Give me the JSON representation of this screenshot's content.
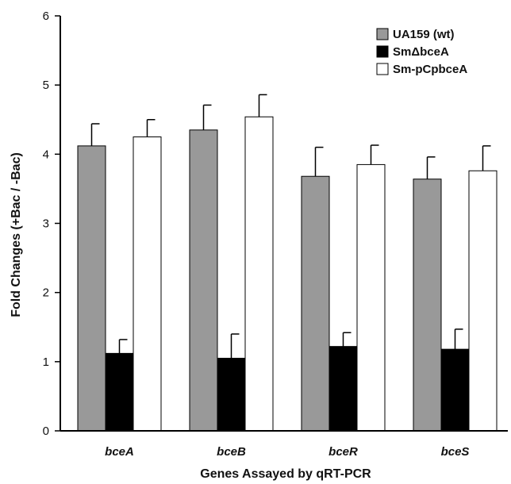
{
  "chart_data": {
    "type": "bar",
    "title": "",
    "xlabel": "Genes Assayed by qRT-PCR",
    "ylabel": "Fold Changes (+Bac / -Bac)",
    "ylim": [
      0,
      6
    ],
    "yticks": [
      0,
      1,
      2,
      3,
      4,
      5,
      6
    ],
    "categories": [
      "bceA",
      "bceB",
      "bceR",
      "bceS"
    ],
    "series": [
      {
        "name": "UA159 (wt)",
        "color": "#999999",
        "values": [
          4.12,
          4.35,
          3.68,
          3.64
        ],
        "errors": [
          0.32,
          0.36,
          0.42,
          0.32
        ]
      },
      {
        "name": "SmΔbceA",
        "color": "#000000",
        "values": [
          1.12,
          1.05,
          1.22,
          1.18
        ],
        "errors": [
          0.2,
          0.35,
          0.2,
          0.29
        ]
      },
      {
        "name": "Sm-pCpbceA",
        "color": "#ffffff",
        "values": [
          4.25,
          4.54,
          3.85,
          3.76
        ],
        "errors": [
          0.25,
          0.32,
          0.28,
          0.36
        ]
      }
    ],
    "grid": false,
    "legend_position": "top-right"
  }
}
